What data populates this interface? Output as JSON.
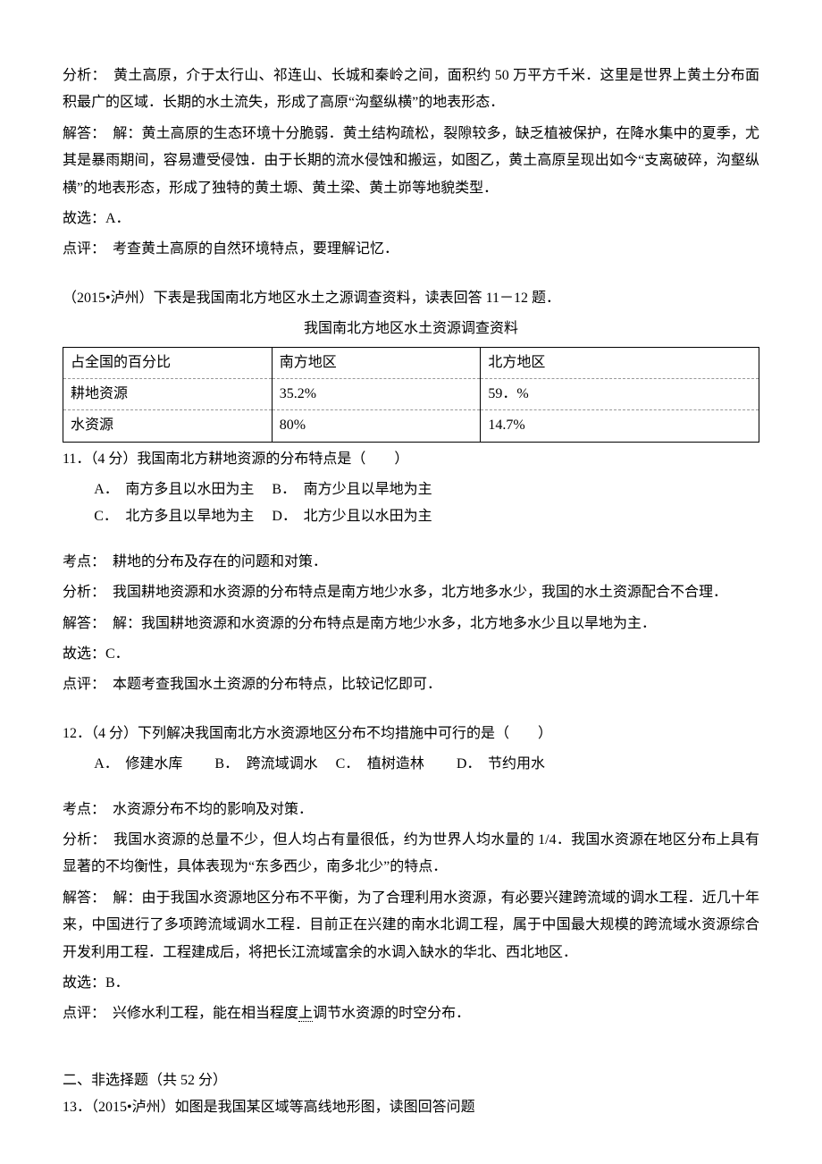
{
  "q10": {
    "fenxi_label": "分析：",
    "fenxi": "黄土高原，介于太行山、祁连山、长城和秦岭之间，面积约 50 万平方千米．这里是世界上黄土分布面积最广的区域．长期的水土流失，形成了高原“沟壑纵横”的地表形态．",
    "jieda_label": "解答：",
    "jieda": "解：黄土高原的生态环境十分脆弱．黄土结构疏松，裂隙较多，缺乏植被保护，在降水集中的夏季，尤其是暴雨期间，容易遭受侵蚀．由于长期的流水侵蚀和搬运，如图乙，黄土高原呈现出如今“支离破碎，沟壑纵横”的地表形态，形成了独特的黄土塬、黄土梁、黄土峁等地貌类型．",
    "guxuan": "故选：A．",
    "dianping_label": "点评：",
    "dianping": "考查黄土高原的自然环境特点，要理解记忆．"
  },
  "intro11": {
    "text": "（2015•泸州）下表是我国南北方地区水土之源调查资料，读表回答 11－12 题．",
    "table_title": "我国南北方地区水土资源调查资料"
  },
  "table": {
    "headers": [
      "占全国的百分比",
      "南方地区",
      "北方地区"
    ],
    "row1": [
      "耕地资源",
      "35.2%",
      "59．%"
    ],
    "row2": [
      "水资源",
      "80%",
      "14.7%"
    ],
    "col_widths": [
      "30%",
      "30%",
      "40%"
    ]
  },
  "q11": {
    "stem": "11．（4 分）我国南北方耕地资源的分布特点是（　　）",
    "optA_label": "A．",
    "optA": "南方多且以水田为主",
    "optB_label": "B．",
    "optB": "南方少且以旱地为主",
    "optC_label": "C．",
    "optC": "北方多且以旱地为主",
    "optD_label": "D．",
    "optD": "北方少且以水田为主",
    "kaodian_label": "考点：",
    "kaodian": "耕地的分布及存在的问题和对策．",
    "fenxi_label": "分析：",
    "fenxi": "我国耕地资源和水资源的分布特点是南方地少水多，北方地多水少，我国的水土资源配合不合理．",
    "jieda_label": "解答：",
    "jieda": "解：我国耕地资源和水资源的分布特点是南方地少水多，北方地多水少且以旱地为主．",
    "guxuan": "故选：C．",
    "dianping_label": "点评：",
    "dianping": "本题考查我国水土资源的分布特点，比较记忆即可．"
  },
  "q12": {
    "stem": "12．（4 分）下列解决我国南北方水资源地区分布不均措施中可行的是（　　）",
    "optA_label": "A．",
    "optA": "修建水库",
    "optB_label": "B．",
    "optB": "跨流域调水",
    "optC_label": "C．",
    "optC": "植树造林",
    "optD_label": "D．",
    "optD": "节约用水",
    "kaodian_label": "考点：",
    "kaodian": "水资源分布不均的影响及对策．",
    "fenxi_label": "分析：",
    "fenxi": "我国水资源的总量不少，但人均占有量很低，约为世界人均水量的 1/4．我国水资源在地区分布上具有显著的不均衡性，具体表现为“东多西少，南多北少”的特点．",
    "jieda_label": "解答：",
    "jieda": "解：由于我国水资源地区分布不平衡，为了合理利用水资源，有必要兴建跨流域的调水工程．近几十年来，中国进行了多项跨流域调水工程．目前正在兴建的南水北调工程，属于中国最大规模的跨流域水资源综合开发利用工程．工程建成后，将把长江流域富余的水调入缺水的华北、西北地区．",
    "guxuan": "故选：B．",
    "dianping_label": "点评：",
    "dianping_prefix": "兴修水利工程，能在相当程度",
    "dianping_underline": "上",
    "dianping_suffix": "调节水资源的时空分布．"
  },
  "section2": {
    "title": "二、非选择题（共 52 分）",
    "q13": "13．（2015•泸州）如图是我国某区域等高线地形图，读图回答问题"
  }
}
